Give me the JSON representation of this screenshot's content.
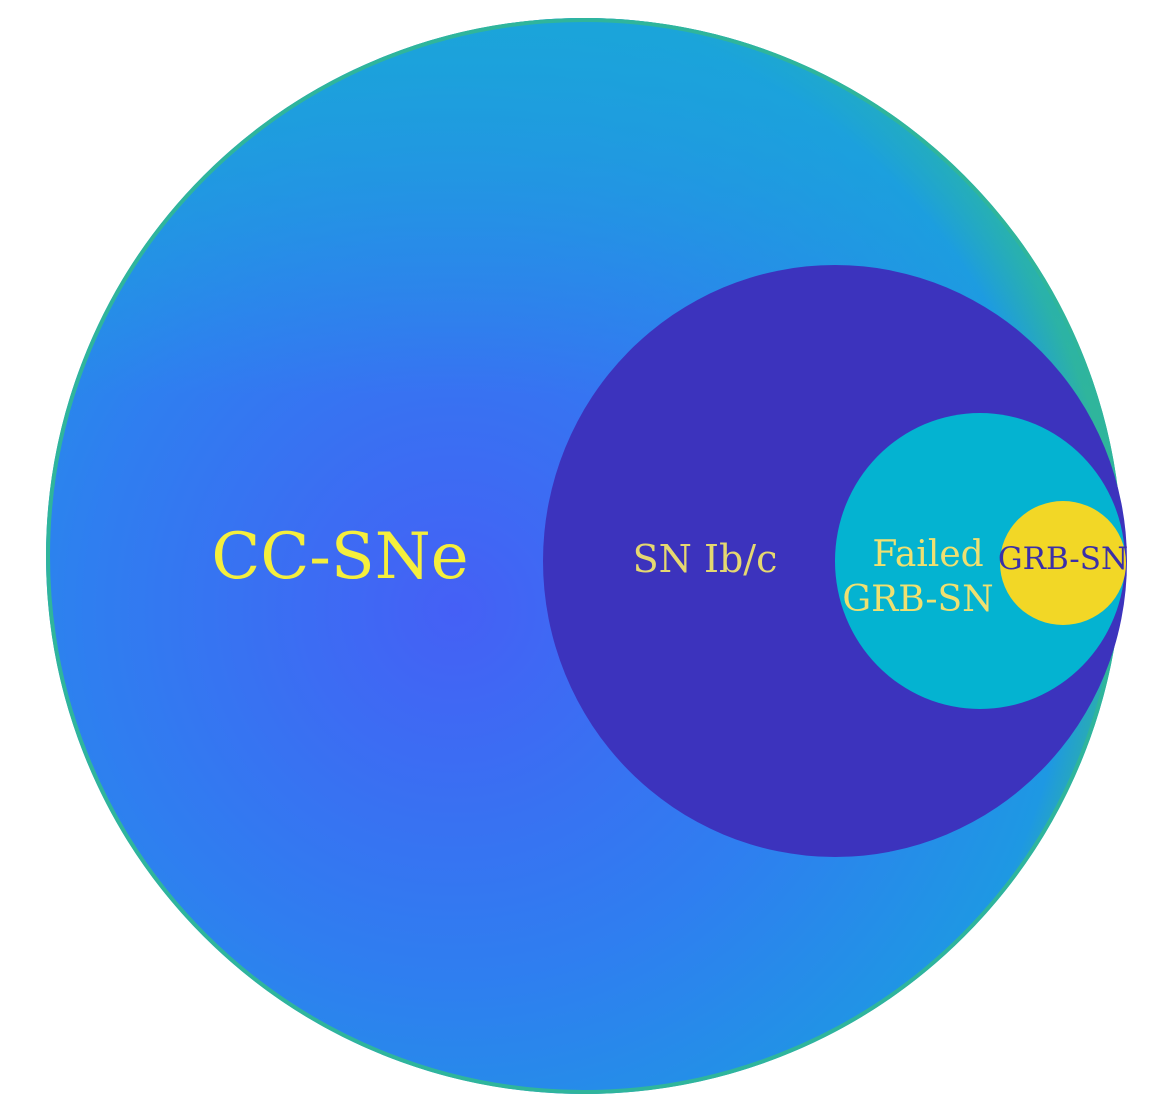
{
  "diagram": {
    "colors": {
      "background": "#ffffff",
      "outer_rim": "#2fb59c",
      "outer_fill_light": "#1e98e3",
      "outer_fill_mid": "#2f7ef0",
      "outer_fill_dark": "#4560f5",
      "sn_ibc_fill": "#3c33bd",
      "failed_grb_fill": "#04b3d1",
      "grb_fill": "#f2d726",
      "label_yellow": "#f5ef3c",
      "label_failed": "#f0e070",
      "label_ibc": "#e5d870",
      "label_grb": "#3b2fa8"
    },
    "sets": [
      {
        "id": "cc-sne",
        "label": "CC-SNe"
      },
      {
        "id": "sn-ibc",
        "label": "SN Ib/c"
      },
      {
        "id": "failed-grb-sn",
        "label_lines": [
          "Failed",
          "GRB-SN"
        ]
      },
      {
        "id": "grb-sn",
        "label": "GRB-SN"
      }
    ]
  }
}
